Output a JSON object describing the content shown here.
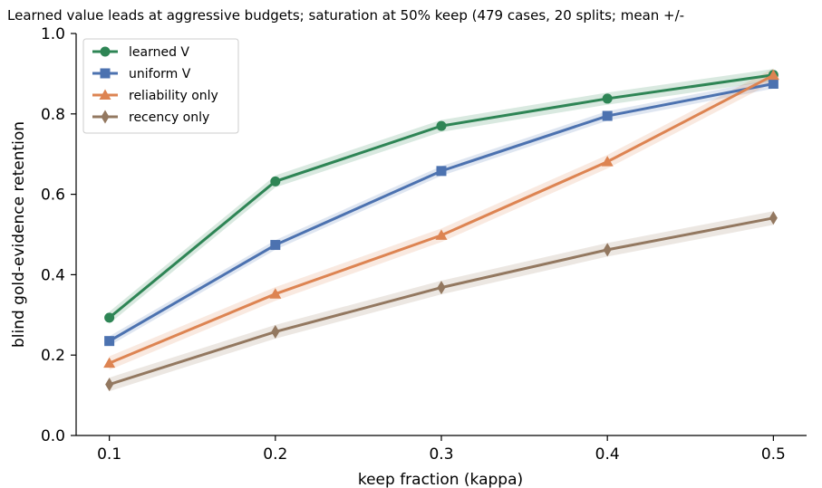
{
  "chart_data": {
    "type": "line",
    "title": "Learned value leads at aggressive budgets; saturation at 50% keep (479 cases, 20 splits; mean +/-",
    "xlabel": "keep fraction (kappa)",
    "ylabel": "blind gold-evidence retention",
    "x": [
      0.1,
      0.2,
      0.3,
      0.4,
      0.5
    ],
    "x_tick_labels": [
      "0.1",
      "0.2",
      "0.3",
      "0.4",
      "0.5"
    ],
    "xlim": [
      0.08,
      0.52
    ],
    "ylim": [
      0.0,
      1.0
    ],
    "y_ticks": [
      0.0,
      0.2,
      0.4,
      0.6,
      0.8,
      1.0
    ],
    "y_tick_labels": [
      "0.0",
      "0.2",
      "0.4",
      "0.6",
      "0.8",
      "1.0"
    ],
    "grid": false,
    "legend_position": "top-left",
    "series": [
      {
        "name": "learned V",
        "color": "#2e8555",
        "marker": "circle",
        "values": [
          0.293,
          0.632,
          0.77,
          0.838,
          0.897
        ],
        "band": 0.015
      },
      {
        "name": "uniform V",
        "color": "#4c72b0",
        "marker": "square",
        "values": [
          0.235,
          0.474,
          0.658,
          0.795,
          0.875
        ],
        "band": 0.012
      },
      {
        "name": "reliability only",
        "color": "#dd8452",
        "marker": "triangle",
        "values": [
          0.18,
          0.352,
          0.498,
          0.681,
          0.896
        ],
        "band": 0.017
      },
      {
        "name": "recency only",
        "color": "#937860",
        "marker": "diamond",
        "values": [
          0.127,
          0.258,
          0.368,
          0.462,
          0.541
        ],
        "band": 0.017
      }
    ]
  }
}
